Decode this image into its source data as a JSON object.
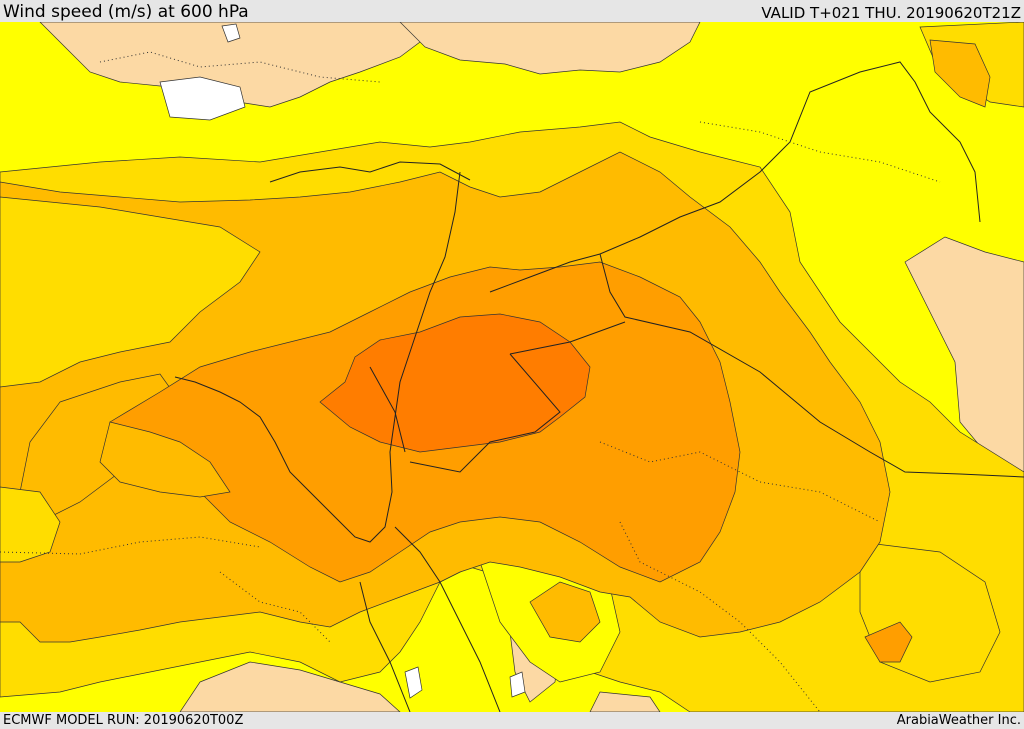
{
  "header": {
    "title": "Wind speed (m/s) at 600 hPa",
    "valid": "VALID T+021 THU. 20190620T21Z"
  },
  "footer": {
    "model_run": "ECMWF MODEL RUN: 20190620T00Z",
    "credit": "ArabiaWeather Inc."
  },
  "map": {
    "colors": {
      "calm": "#ffffff",
      "light": "#fcd9a4",
      "low": "#ffff00",
      "moderate": "#ffdd00",
      "fresh": "#ffbb00",
      "strong": "#ff9e00",
      "very_strong": "#ff7d00"
    }
  }
}
